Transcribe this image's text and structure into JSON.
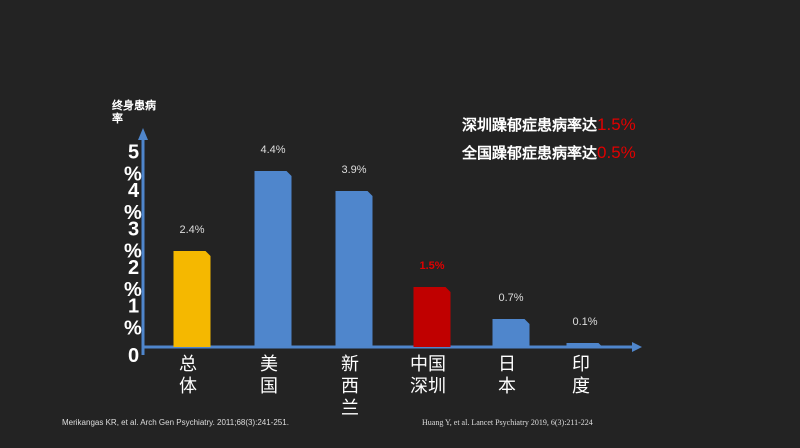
{
  "chart_data": {
    "type": "bar",
    "ylabel": "终身患病率",
    "ylim": [
      0,
      5
    ],
    "yticks": [
      "0",
      "1%",
      "2%",
      "3%",
      "4%",
      "5%"
    ],
    "categories": [
      "总体",
      "美国",
      "新西兰",
      "中国深圳",
      "日本",
      "印度"
    ],
    "category_lines": [
      [
        "总",
        "体"
      ],
      [
        "美",
        "国"
      ],
      [
        "新",
        "西",
        "兰"
      ],
      [
        "中国",
        "深圳"
      ],
      [
        "日",
        "本"
      ],
      [
        "印",
        "度"
      ]
    ],
    "values": [
      2.4,
      4.4,
      3.9,
      1.5,
      0.7,
      0.1
    ],
    "labels": [
      "2.4%",
      "4.4%",
      "3.9%",
      "1.5%",
      "0.7%",
      "0.1%"
    ],
    "colors": [
      "#f5b800",
      "#4f86cc",
      "#4f86cc",
      "#c00000",
      "#4f86cc",
      "#4f86cc"
    ],
    "label_colors": [
      "#ddd",
      "#ddd",
      "#ddd",
      "#e00000",
      "#ddd",
      "#ddd"
    ],
    "annotations": [
      {
        "text": "深圳躁郁症患病率达",
        "value": "1.5%"
      },
      {
        "text": "全国躁郁症患病率达",
        "value": "0.5%"
      }
    ]
  },
  "references": [
    "Merikangas KR, et al. Arch Gen Psychiatry. 2011;68(3):241-251.",
    "Huang Y, et al. Lancet Psychiatry 2019, 6(3):211-224"
  ]
}
